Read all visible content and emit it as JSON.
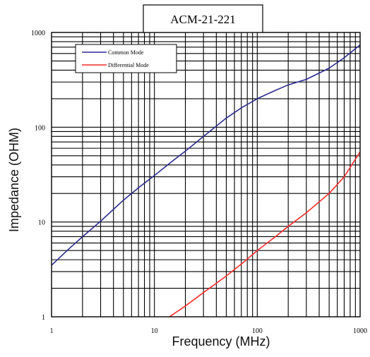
{
  "chart_data": {
    "type": "line",
    "title": "ACM-21-221",
    "xlabel": "Frequency (MHz)",
    "ylabel": "Impedance (OHM)",
    "xscale": "log",
    "yscale": "log",
    "xlim": [
      1,
      1000
    ],
    "ylim": [
      1,
      1000
    ],
    "x_tick_labels": [
      "1",
      "10",
      "100",
      "1000"
    ],
    "y_tick_labels": [
      "1",
      "10",
      "100",
      "1000"
    ],
    "grid": true,
    "legend_position": "top-left",
    "series": [
      {
        "name": "Common Mode",
        "color": "#2b2b8f",
        "x": [
          1,
          1.5,
          2,
          3,
          5,
          7,
          10,
          15,
          20,
          30,
          50,
          70,
          100,
          150,
          200,
          300,
          500,
          700,
          1000
        ],
        "y": [
          3.5,
          5.3,
          7,
          10.2,
          17,
          23,
          31,
          44,
          56,
          80,
          125,
          160,
          200,
          245,
          280,
          320,
          420,
          540,
          740
        ]
      },
      {
        "name": "Differential Mode",
        "color": "#ff2b2b",
        "x": [
          14,
          20,
          30,
          50,
          70,
          100,
          150,
          200,
          300,
          500,
          700,
          1000
        ],
        "y": [
          1,
          1.3,
          1.8,
          2.7,
          3.6,
          5,
          7,
          9,
          12.5,
          20,
          30,
          55
        ]
      }
    ]
  }
}
